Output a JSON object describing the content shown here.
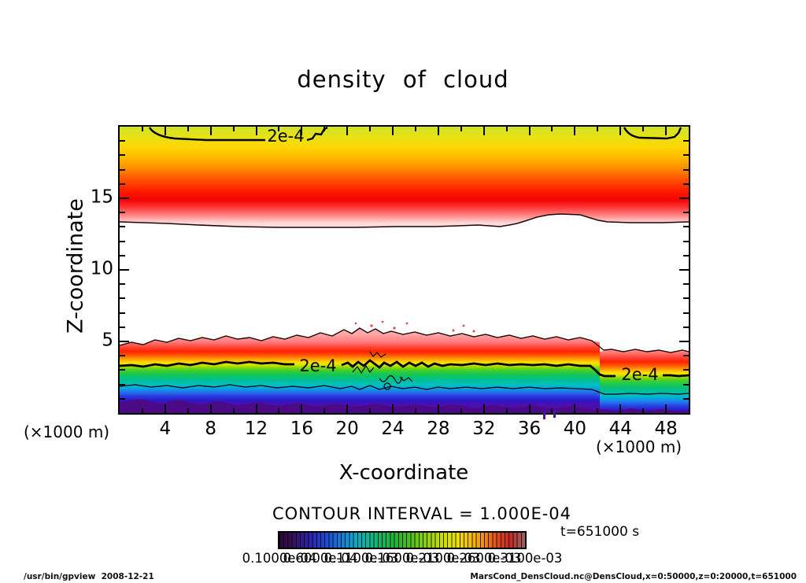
{
  "title": "density of cloud",
  "plot": {
    "y_axis_label": "Z-coordinate",
    "x_axis_label": "X-coordinate",
    "y_unit_label": "(×1000 m)",
    "x_unit_label": "(×1000 m)",
    "contour_labels": {
      "top": "2e-4",
      "lower_left": "2e-4",
      "lower_right": "2e-4"
    }
  },
  "legend": {
    "contour_interval_text": "CONTOUR INTERVAL = 1.000E-04",
    "time_text": "t=651000 s"
  },
  "footer": {
    "left": "/usr/bin/gpview  2008-12-21",
    "right": "MarsCond_DensCloud.nc@DensCloud,x=0:50000,z=0:20000,t=651000"
  },
  "chart_data": {
    "type": "heatmap",
    "title": "density of cloud",
    "xlabel": "X-coordinate",
    "ylabel": "Z-coordinate",
    "x_unit": "(×1000 m)",
    "y_unit": "(×1000 m)",
    "xlim": [
      0,
      50
    ],
    "ylim": [
      0,
      20
    ],
    "xticks": [
      4,
      8,
      12,
      16,
      20,
      24,
      28,
      32,
      36,
      40,
      44,
      48
    ],
    "xtick_minor_step": 2,
    "yticks": [
      5,
      10,
      15
    ],
    "ytick_minor_step": 1,
    "grid": false,
    "legend_position": "bottom",
    "contour_interval": 0.0001,
    "labeled_contour_value": 0.0002,
    "time": "t=651000 s",
    "colorbar": {
      "orientation": "horizontal",
      "min": 1e-05,
      "max": 0.00031,
      "n_cells": 60,
      "tick_labels": [
        "0.1000e-04",
        "0.6000e-04",
        "0.1100e-03",
        "0.1600e-03",
        "0.2100e-03",
        "0.2600e-03",
        "0.3100e-03"
      ],
      "colors": [
        "#2b0636",
        "#2c21a8",
        "#2043d0",
        "#13a0cc",
        "#18b45a",
        "#55c21c",
        "#c6dc0d",
        "#ecdf08",
        "#f09a0e",
        "#db3f1a",
        "#c52a22",
        "#9d5f5f"
      ]
    },
    "layers": [
      {
        "name": "upper cloud layer",
        "z_extent_x1000m": [
          13.3,
          20
        ],
        "peak": "density ≈ 3e-4 near z ≈ 15",
        "note": "2e-4 contour arcs near top boundary (z ≈ 19.3); density fades to < 1e-5 (white) below z ≈ 13.3"
      },
      {
        "name": "lower cloud layer",
        "z_extent_x1000m": [
          0,
          5.0
        ],
        "peak": "density ≈ 3e-4 near z ≈ 4.4",
        "note": "2e-4 contour near z ≈ 3.3 (labeled twice); thin contour near z ≈ 1.9; density drops to ≈ 1e-5 (purple) at surface; layer steps down ~0.7 km east of x ≈ 42"
      }
    ]
  }
}
